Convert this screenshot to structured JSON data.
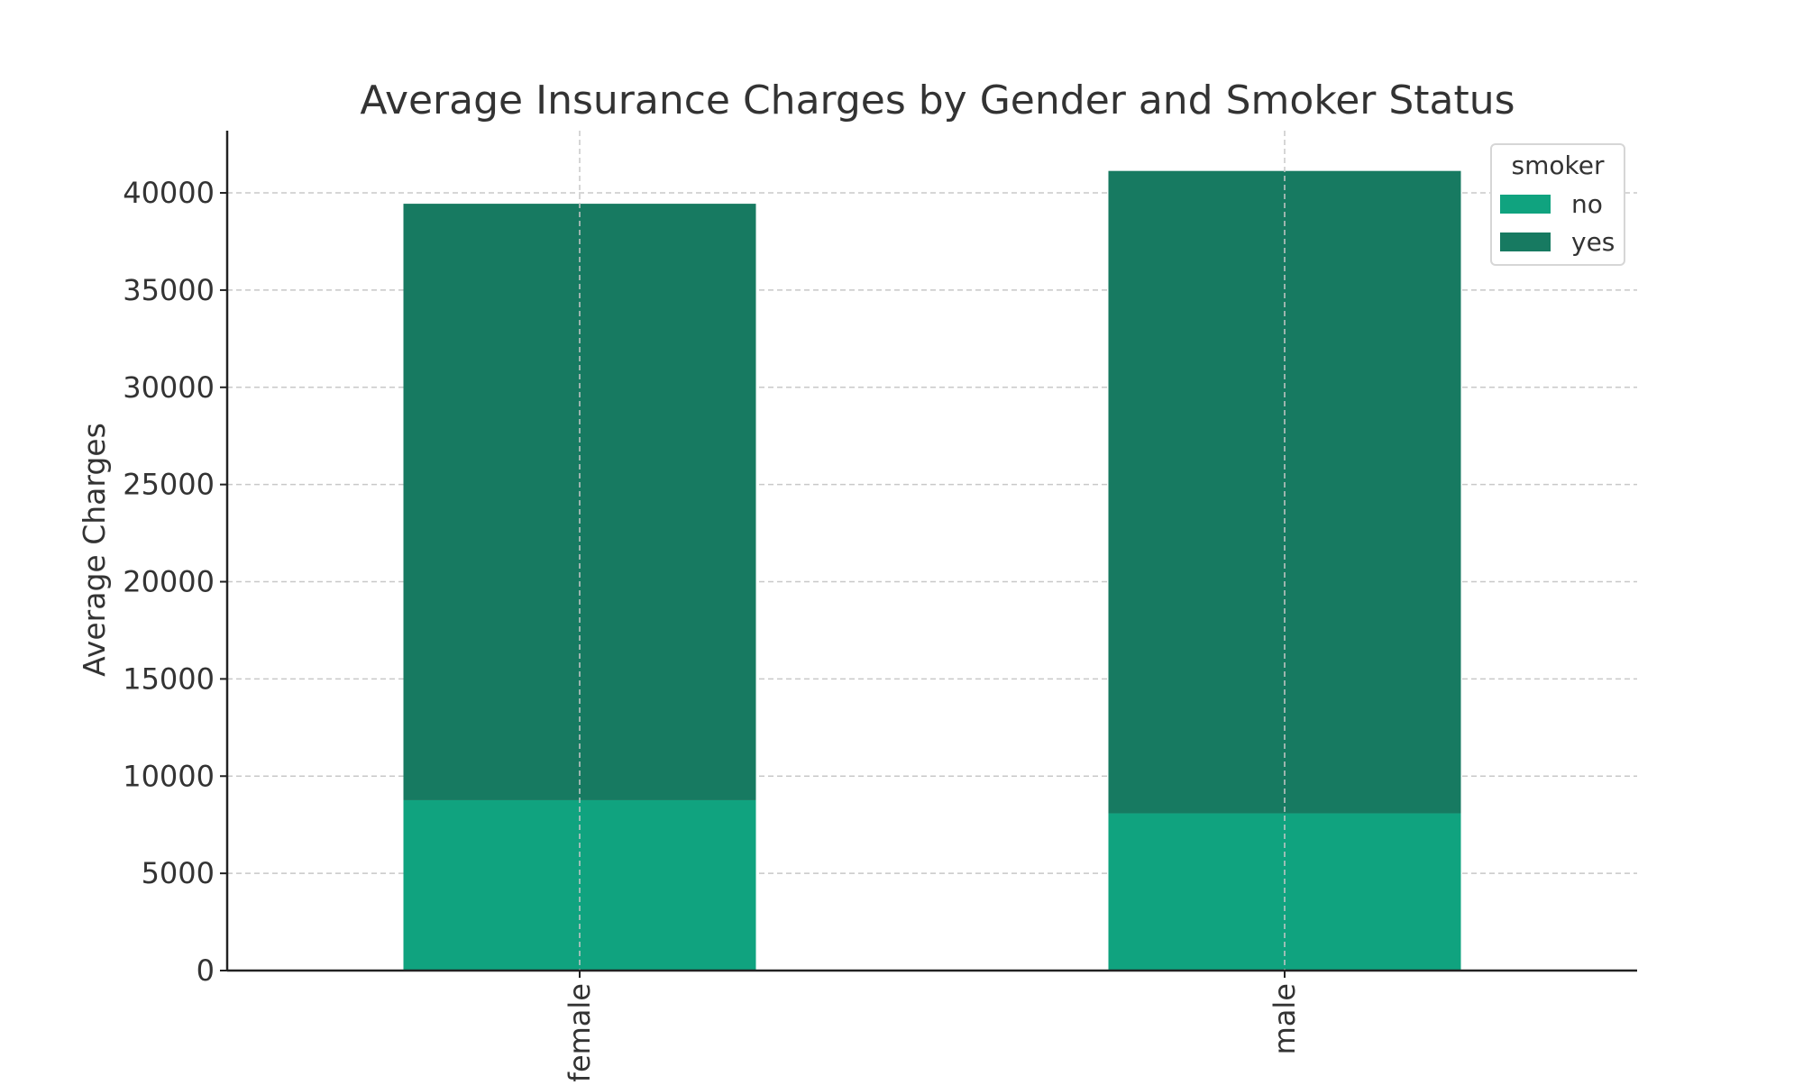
{
  "chart_data": {
    "type": "bar",
    "stacked": true,
    "title": "Average Insurance Charges by Gender and Smoker Status",
    "xlabel": "",
    "ylabel": "Average Charges",
    "categories": [
      "female",
      "male"
    ],
    "series": [
      {
        "name": "no",
        "values": [
          8762.3,
          8087.2
        ],
        "color": "#10a37f"
      },
      {
        "name": "yes",
        "values": [
          30679.0,
          33042.0
        ],
        "color": "#177a61"
      }
    ],
    "ylim": [
      0,
      43200
    ],
    "yticks": [
      0,
      5000,
      10000,
      15000,
      20000,
      25000,
      30000,
      35000,
      40000
    ],
    "grid": true,
    "legend": {
      "title": "smoker",
      "position": "top-right"
    }
  }
}
